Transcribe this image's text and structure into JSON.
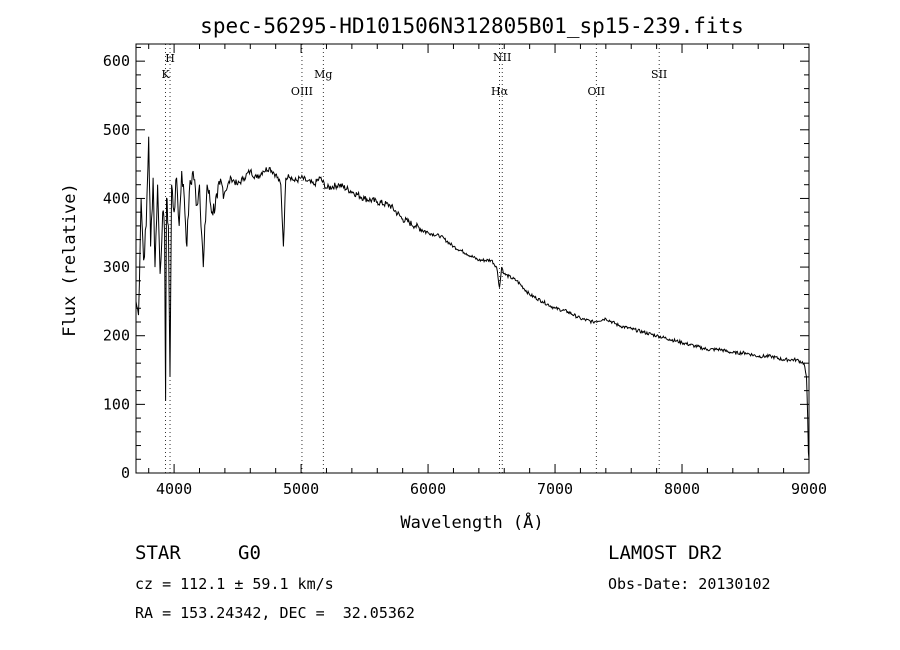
{
  "chart_data": {
    "type": "line",
    "title": "spec-56295-HD101506N312805B01_sp15-239.fits",
    "xlabel": "Wavelength (Å)",
    "ylabel": "Flux (relative)",
    "xlim": [
      3700,
      9000
    ],
    "ylim": [
      0,
      625
    ],
    "x_ticks": [
      4000,
      5000,
      6000,
      7000,
      8000,
      9000
    ],
    "y_ticks": [
      0,
      100,
      200,
      300,
      400,
      500,
      600
    ],
    "grid": false,
    "series": [
      {
        "x": [
          3700,
          3720,
          3740,
          3760,
          3780,
          3800,
          3815,
          3835,
          3850,
          3870,
          3890,
          3910,
          3925,
          3933,
          3940,
          3955,
          3968,
          3980,
          4000,
          4020,
          4040,
          4060,
          4080,
          4101,
          4120,
          4150,
          4180,
          4200,
          4230,
          4260,
          4300,
          4340,
          4360,
          4400,
          4450,
          4500,
          4550,
          4600,
          4650,
          4700,
          4750,
          4800,
          4840,
          4861,
          4880,
          4900,
          4950,
          5000,
          5050,
          5100,
          5150,
          5200,
          5300,
          5400,
          5500,
          5600,
          5700,
          5800,
          5900,
          6000,
          6100,
          6200,
          6300,
          6400,
          6500,
          6540,
          6563,
          6580,
          6600,
          6700,
          6800,
          6900,
          7000,
          7100,
          7200,
          7300,
          7400,
          7500,
          7600,
          7700,
          7800,
          7900,
          8000,
          8100,
          8200,
          8300,
          8400,
          8500,
          8600,
          8700,
          8800,
          8900,
          8960,
          8980,
          8990,
          8995,
          9000
        ],
        "y": [
          250,
          230,
          400,
          310,
          360,
          490,
          330,
          430,
          300,
          420,
          290,
          380,
          350,
          105,
          400,
          360,
          140,
          420,
          380,
          430,
          360,
          440,
          400,
          330,
          410,
          440,
          390,
          420,
          300,
          420,
          380,
          400,
          420,
          410,
          430,
          420,
          430,
          440,
          430,
          440,
          445,
          435,
          420,
          330,
          430,
          435,
          425,
          430,
          425,
          420,
          430,
          415,
          420,
          410,
          400,
          395,
          390,
          370,
          360,
          350,
          345,
          330,
          320,
          310,
          310,
          300,
          270,
          300,
          290,
          280,
          260,
          250,
          240,
          235,
          225,
          220,
          225,
          215,
          210,
          205,
          200,
          195,
          190,
          185,
          180,
          180,
          175,
          175,
          170,
          170,
          165,
          165,
          160,
          140,
          80,
          30,
          20
        ]
      }
    ],
    "reference_lines": [
      {
        "x": 3933,
        "label": "K"
      },
      {
        "x": 3968,
        "label": "H"
      },
      {
        "x": 5007,
        "label": "OIII"
      },
      {
        "x": 5175,
        "label": "Mg"
      },
      {
        "x": 6563,
        "label": "Hα"
      },
      {
        "x": 6584,
        "label": "NII"
      },
      {
        "x": 7325,
        "label": "OII"
      },
      {
        "x": 7820,
        "label": "SII"
      }
    ]
  },
  "info": {
    "object_class": "STAR",
    "subclass": "G0",
    "survey": "LAMOST DR2",
    "cz": "cz = 112.1 ± 59.1 km/s",
    "obs_date": "Obs-Date: 20130102",
    "coords": "RA = 153.24342, DEC =  32.05362"
  }
}
